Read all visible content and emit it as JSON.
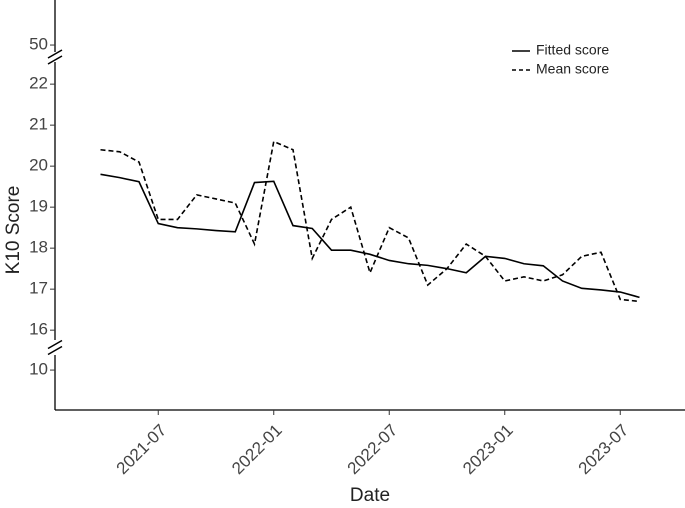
{
  "chart_data": {
    "type": "line",
    "xlabel": "Date",
    "ylabel": "K10 Score",
    "x": [
      "2021-04",
      "2021-05",
      "2021-06",
      "2021-07",
      "2021-08",
      "2021-09",
      "2021-10",
      "2021-11",
      "2021-12",
      "2022-01",
      "2022-02",
      "2022-03",
      "2022-04",
      "2022-05",
      "2022-06",
      "2022-07",
      "2022-08",
      "2022-09",
      "2022-10",
      "2022-11",
      "2022-12",
      "2023-01",
      "2023-02",
      "2023-03",
      "2023-04",
      "2023-05",
      "2023-06",
      "2023-07",
      "2023-08"
    ],
    "series": [
      {
        "name": "Fitted score",
        "color": "#000000",
        "dash": "solid",
        "values": [
          19.8,
          19.72,
          19.62,
          18.6,
          18.5,
          18.47,
          18.43,
          18.4,
          19.6,
          19.63,
          18.55,
          18.48,
          17.95,
          17.95,
          17.85,
          17.7,
          17.62,
          17.58,
          17.5,
          17.4,
          17.8,
          17.75,
          17.62,
          17.57,
          17.2,
          17.02,
          16.98,
          16.93,
          16.8
        ]
      },
      {
        "name": "Mean score",
        "color": "#000000",
        "dash": "dashed",
        "values": [
          20.4,
          20.35,
          20.1,
          18.7,
          18.7,
          19.3,
          19.2,
          19.1,
          18.1,
          20.6,
          20.4,
          17.75,
          18.7,
          19.0,
          17.4,
          18.5,
          18.25,
          17.1,
          17.5,
          18.1,
          17.8,
          17.2,
          17.3,
          17.2,
          17.35,
          17.8,
          17.9,
          16.75,
          16.7
        ]
      }
    ],
    "xlim": [
      "2021-02",
      "2023-10"
    ],
    "xticks": [
      "2021-07",
      "2022-01",
      "2022-07",
      "2023-01",
      "2023-07"
    ],
    "y_segments": [
      {
        "ylim": [
          49.83,
          51.1
        ],
        "yticks": [
          50
        ]
      },
      {
        "ylim": [
          15.76,
          22.54
        ],
        "yticks": [
          16,
          17,
          18,
          19,
          20,
          21,
          22
        ]
      },
      {
        "ylim": [
          9.02,
          10.37
        ],
        "yticks": [
          10
        ]
      }
    ],
    "legend": "top-right",
    "grid": false
  }
}
